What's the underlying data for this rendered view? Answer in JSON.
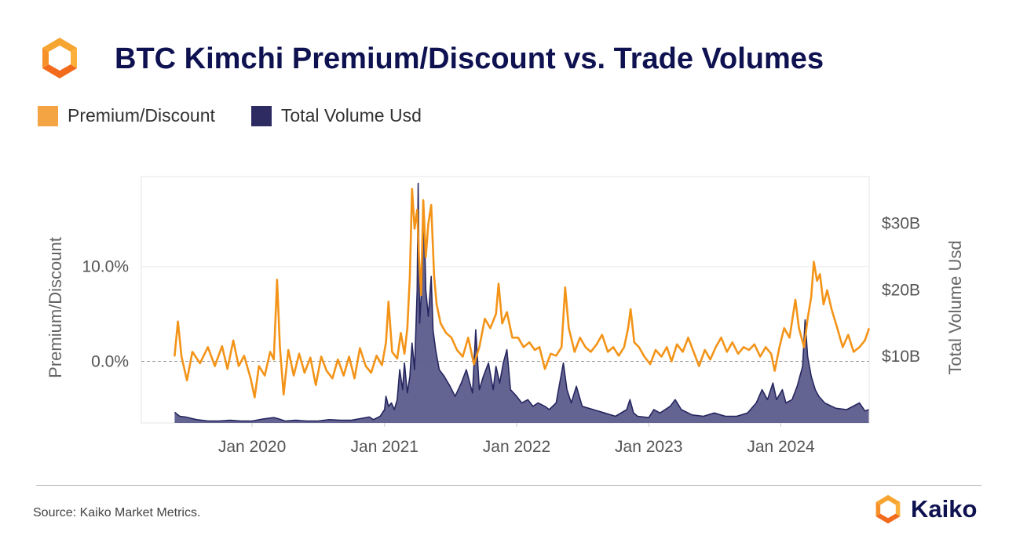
{
  "header": {
    "title": "BTC Kimchi Premium/Discount vs. Trade Volumes"
  },
  "legend": {
    "items": [
      {
        "label": "Premium/Discount",
        "color": "#f5a443"
      },
      {
        "label": "Total Volume Usd",
        "color": "#2e2b63"
      }
    ]
  },
  "footer": {
    "source": "Source: Kaiko Market Metrics.",
    "brand": "Kaiko"
  },
  "icons": {
    "logo": "kaiko-logo-icon",
    "brand_mark": "kaiko-brand-icon"
  },
  "chart_data": {
    "type": "line",
    "xlabel": "",
    "x_ticks": [
      {
        "date": "2020-01-01",
        "label": "Jan 2020"
      },
      {
        "date": "2021-01-01",
        "label": "Jan 2021"
      },
      {
        "date": "2022-01-01",
        "label": "Jan 2022"
      },
      {
        "date": "2023-01-01",
        "label": "Jan 2023"
      },
      {
        "date": "2024-01-01",
        "label": "Jan 2024"
      }
    ],
    "x_range": [
      "2019-03-01",
      "2024-09-01"
    ],
    "y_left": {
      "label": "Premium/Discount",
      "unit": "percent",
      "range": [
        -6.5,
        19.5
      ],
      "ticks": [
        {
          "value": 0,
          "label": "0.0%"
        },
        {
          "value": 10,
          "label": "10.0%"
        }
      ],
      "zero_line": true
    },
    "y_right": {
      "label": "Total Volume Usd",
      "unit": "USD billions",
      "range": [
        0,
        37
      ],
      "ticks": [
        {
          "value": 10,
          "label": "$10B"
        },
        {
          "value": 20,
          "label": "$20B"
        },
        {
          "value": 30,
          "label": "$30B"
        }
      ]
    },
    "series": [
      {
        "name": "Premium/Discount",
        "axis": "left",
        "style": "line",
        "color": "#f39419",
        "points": [
          [
            "2019-06-01",
            0.6
          ],
          [
            "2019-06-10",
            4.2
          ],
          [
            "2019-06-20",
            0.5
          ],
          [
            "2019-07-05",
            -2.0
          ],
          [
            "2019-07-20",
            1.0
          ],
          [
            "2019-08-10",
            -0.2
          ],
          [
            "2019-09-01",
            1.5
          ],
          [
            "2019-09-20",
            -0.5
          ],
          [
            "2019-10-10",
            1.6
          ],
          [
            "2019-10-25",
            -0.8
          ],
          [
            "2019-11-10",
            2.2
          ],
          [
            "2019-11-25",
            -0.5
          ],
          [
            "2019-12-10",
            0.6
          ],
          [
            "2019-12-28",
            -1.8
          ],
          [
            "2020-01-08",
            -3.8
          ],
          [
            "2020-01-20",
            -0.5
          ],
          [
            "2020-02-05",
            -1.5
          ],
          [
            "2020-02-20",
            1.0
          ],
          [
            "2020-03-01",
            0.2
          ],
          [
            "2020-03-10",
            8.6
          ],
          [
            "2020-03-18",
            1.5
          ],
          [
            "2020-03-28",
            -3.5
          ],
          [
            "2020-04-10",
            1.2
          ],
          [
            "2020-04-25",
            -1.5
          ],
          [
            "2020-05-10",
            0.8
          ],
          [
            "2020-05-25",
            -1.2
          ],
          [
            "2020-06-10",
            0.4
          ],
          [
            "2020-06-25",
            -2.5
          ],
          [
            "2020-07-10",
            0.5
          ],
          [
            "2020-07-25",
            -1.0
          ],
          [
            "2020-08-10",
            -1.8
          ],
          [
            "2020-08-25",
            0.2
          ],
          [
            "2020-09-10",
            -1.5
          ],
          [
            "2020-09-25",
            0.5
          ],
          [
            "2020-10-10",
            -1.8
          ],
          [
            "2020-10-25",
            1.4
          ],
          [
            "2020-11-10",
            -0.5
          ],
          [
            "2020-11-25",
            -1.2
          ],
          [
            "2020-12-10",
            0.6
          ],
          [
            "2020-12-25",
            -0.4
          ],
          [
            "2021-01-05",
            2.0
          ],
          [
            "2021-01-12",
            6.3
          ],
          [
            "2021-01-22",
            1.0
          ],
          [
            "2021-02-05",
            0.3
          ],
          [
            "2021-02-15",
            3.0
          ],
          [
            "2021-02-25",
            0.8
          ],
          [
            "2021-03-05",
            3.5
          ],
          [
            "2021-03-12",
            9.0
          ],
          [
            "2021-03-18",
            18.2
          ],
          [
            "2021-03-25",
            14.0
          ],
          [
            "2021-04-01",
            16.0
          ],
          [
            "2021-04-06",
            11.0
          ],
          [
            "2021-04-12",
            7.0
          ],
          [
            "2021-04-18",
            17.0
          ],
          [
            "2021-04-25",
            11.0
          ],
          [
            "2021-05-02",
            14.5
          ],
          [
            "2021-05-10",
            16.5
          ],
          [
            "2021-05-18",
            9.0
          ],
          [
            "2021-05-25",
            6.0
          ],
          [
            "2021-06-05",
            4.0
          ],
          [
            "2021-06-20",
            3.0
          ],
          [
            "2021-07-05",
            2.5
          ],
          [
            "2021-07-20",
            1.2
          ],
          [
            "2021-08-05",
            0.5
          ],
          [
            "2021-08-20",
            2.5
          ],
          [
            "2021-09-05",
            -0.3
          ],
          [
            "2021-09-20",
            1.5
          ],
          [
            "2021-10-05",
            4.5
          ],
          [
            "2021-10-20",
            3.5
          ],
          [
            "2021-11-05",
            5.0
          ],
          [
            "2021-11-12",
            8.2
          ],
          [
            "2021-11-22",
            4.0
          ],
          [
            "2021-12-05",
            5.2
          ],
          [
            "2021-12-20",
            2.5
          ],
          [
            "2022-01-05",
            2.5
          ],
          [
            "2022-01-20",
            1.5
          ],
          [
            "2022-02-05",
            2.0
          ],
          [
            "2022-02-20",
            1.2
          ],
          [
            "2022-03-05",
            1.5
          ],
          [
            "2022-03-20",
            -0.8
          ],
          [
            "2022-04-05",
            0.8
          ],
          [
            "2022-04-20",
            0.6
          ],
          [
            "2022-05-05",
            1.5
          ],
          [
            "2022-05-15",
            7.8
          ],
          [
            "2022-05-25",
            3.5
          ],
          [
            "2022-06-10",
            1.0
          ],
          [
            "2022-06-25",
            2.5
          ],
          [
            "2022-07-10",
            1.5
          ],
          [
            "2022-07-25",
            1.0
          ],
          [
            "2022-08-10",
            1.8
          ],
          [
            "2022-08-25",
            2.8
          ],
          [
            "2022-09-10",
            1.0
          ],
          [
            "2022-09-25",
            1.5
          ],
          [
            "2022-10-10",
            0.6
          ],
          [
            "2022-10-25",
            1.5
          ],
          [
            "2022-11-05",
            3.5
          ],
          [
            "2022-11-12",
            5.5
          ],
          [
            "2022-11-22",
            2.0
          ],
          [
            "2022-12-05",
            1.5
          ],
          [
            "2022-12-20",
            0.5
          ],
          [
            "2023-01-05",
            -0.3
          ],
          [
            "2023-01-20",
            1.2
          ],
          [
            "2023-02-05",
            0.5
          ],
          [
            "2023-02-20",
            1.5
          ],
          [
            "2023-03-05",
            0.0
          ],
          [
            "2023-03-20",
            1.8
          ],
          [
            "2023-04-05",
            1.0
          ],
          [
            "2023-04-20",
            2.5
          ],
          [
            "2023-05-05",
            1.0
          ],
          [
            "2023-05-20",
            -0.5
          ],
          [
            "2023-06-05",
            1.2
          ],
          [
            "2023-06-20",
            0.2
          ],
          [
            "2023-07-05",
            1.5
          ],
          [
            "2023-07-20",
            2.5
          ],
          [
            "2023-08-05",
            1.0
          ],
          [
            "2023-08-20",
            2.0
          ],
          [
            "2023-09-05",
            0.8
          ],
          [
            "2023-09-20",
            1.5
          ],
          [
            "2023-10-05",
            1.2
          ],
          [
            "2023-10-20",
            1.8
          ],
          [
            "2023-11-05",
            0.5
          ],
          [
            "2023-11-20",
            1.5
          ],
          [
            "2023-12-05",
            0.8
          ],
          [
            "2023-12-15",
            -1.0
          ],
          [
            "2023-12-28",
            1.5
          ],
          [
            "2024-01-10",
            3.5
          ],
          [
            "2024-01-25",
            2.5
          ],
          [
            "2024-02-10",
            6.5
          ],
          [
            "2024-02-20",
            3.5
          ],
          [
            "2024-03-05",
            1.5
          ],
          [
            "2024-03-15",
            4.5
          ],
          [
            "2024-03-25",
            6.8
          ],
          [
            "2024-04-01",
            10.5
          ],
          [
            "2024-04-10",
            8.5
          ],
          [
            "2024-04-18",
            9.2
          ],
          [
            "2024-04-28",
            6.0
          ],
          [
            "2024-05-08",
            7.5
          ],
          [
            "2024-05-20",
            5.5
          ],
          [
            "2024-06-05",
            3.5
          ],
          [
            "2024-06-20",
            1.5
          ],
          [
            "2024-07-05",
            2.8
          ],
          [
            "2024-07-20",
            1.0
          ],
          [
            "2024-08-05",
            1.5
          ],
          [
            "2024-08-20",
            2.2
          ],
          [
            "2024-08-31",
            3.4
          ]
        ]
      },
      {
        "name": "Total Volume Usd",
        "axis": "right",
        "style": "area",
        "color": "#262660",
        "fill": "#5c5c8c",
        "points": [
          [
            "2019-06-01",
            1.6
          ],
          [
            "2019-06-15",
            1.0
          ],
          [
            "2019-07-01",
            0.9
          ],
          [
            "2019-08-01",
            0.5
          ],
          [
            "2019-09-01",
            0.3
          ],
          [
            "2019-10-01",
            0.3
          ],
          [
            "2019-11-01",
            0.4
          ],
          [
            "2019-12-01",
            0.3
          ],
          [
            "2020-01-01",
            0.3
          ],
          [
            "2020-02-01",
            0.6
          ],
          [
            "2020-03-01",
            0.8
          ],
          [
            "2020-03-15",
            0.6
          ],
          [
            "2020-04-01",
            0.3
          ],
          [
            "2020-05-01",
            0.4
          ],
          [
            "2020-06-01",
            0.3
          ],
          [
            "2020-07-01",
            0.3
          ],
          [
            "2020-08-01",
            0.5
          ],
          [
            "2020-09-01",
            0.4
          ],
          [
            "2020-10-01",
            0.4
          ],
          [
            "2020-11-01",
            0.7
          ],
          [
            "2020-11-20",
            0.9
          ],
          [
            "2020-12-01",
            0.5
          ],
          [
            "2020-12-20",
            1.0
          ],
          [
            "2021-01-01",
            2.0
          ],
          [
            "2021-01-05",
            4.0
          ],
          [
            "2021-01-12",
            2.5
          ],
          [
            "2021-01-20",
            3.0
          ],
          [
            "2021-01-28",
            2.0
          ],
          [
            "2021-02-05",
            3.5
          ],
          [
            "2021-02-12",
            8.0
          ],
          [
            "2021-02-20",
            5.0
          ],
          [
            "2021-02-25",
            9.0
          ],
          [
            "2021-03-05",
            4.5
          ],
          [
            "2021-03-12",
            7.0
          ],
          [
            "2021-03-18",
            12.0
          ],
          [
            "2021-03-25",
            8.0
          ],
          [
            "2021-04-01",
            20.0
          ],
          [
            "2021-04-04",
            36.0
          ],
          [
            "2021-04-08",
            15.0
          ],
          [
            "2021-04-15",
            22.0
          ],
          [
            "2021-04-20",
            32.0
          ],
          [
            "2021-04-25",
            20.0
          ],
          [
            "2021-05-02",
            16.0
          ],
          [
            "2021-05-10",
            22.0
          ],
          [
            "2021-05-15",
            14.0
          ],
          [
            "2021-05-22",
            11.0
          ],
          [
            "2021-06-01",
            8.0
          ],
          [
            "2021-06-15",
            7.0
          ],
          [
            "2021-07-01",
            5.5
          ],
          [
            "2021-07-15",
            4.0
          ],
          [
            "2021-08-01",
            6.0
          ],
          [
            "2021-08-15",
            8.0
          ],
          [
            "2021-09-01",
            4.5
          ],
          [
            "2021-09-10",
            14.0
          ],
          [
            "2021-09-20",
            5.0
          ],
          [
            "2021-10-01",
            7.0
          ],
          [
            "2021-10-15",
            9.0
          ],
          [
            "2021-10-28",
            5.0
          ],
          [
            "2021-11-05",
            8.5
          ],
          [
            "2021-11-15",
            6.0
          ],
          [
            "2021-11-25",
            9.0
          ],
          [
            "2021-12-05",
            11.0
          ],
          [
            "2021-12-15",
            5.0
          ],
          [
            "2022-01-01",
            4.0
          ],
          [
            "2022-01-15",
            3.0
          ],
          [
            "2022-02-01",
            3.5
          ],
          [
            "2022-02-15",
            2.5
          ],
          [
            "2022-03-01",
            3.0
          ],
          [
            "2022-03-20",
            2.5
          ],
          [
            "2022-04-01",
            2.0
          ],
          [
            "2022-04-20",
            3.0
          ],
          [
            "2022-05-10",
            9.0
          ],
          [
            "2022-05-20",
            5.0
          ],
          [
            "2022-06-01",
            3.0
          ],
          [
            "2022-06-15",
            5.5
          ],
          [
            "2022-07-01",
            2.5
          ],
          [
            "2022-08-01",
            2.0
          ],
          [
            "2022-09-01",
            1.5
          ],
          [
            "2022-10-01",
            1.0
          ],
          [
            "2022-11-01",
            2.0
          ],
          [
            "2022-11-10",
            3.5
          ],
          [
            "2022-11-20",
            1.5
          ],
          [
            "2022-12-01",
            1.0
          ],
          [
            "2023-01-01",
            0.8
          ],
          [
            "2023-01-15",
            2.0
          ],
          [
            "2023-02-01",
            1.5
          ],
          [
            "2023-03-01",
            2.5
          ],
          [
            "2023-03-15",
            3.5
          ],
          [
            "2023-04-01",
            2.0
          ],
          [
            "2023-05-01",
            1.2
          ],
          [
            "2023-06-01",
            1.0
          ],
          [
            "2023-07-01",
            1.5
          ],
          [
            "2023-08-01",
            1.0
          ],
          [
            "2023-09-01",
            1.0
          ],
          [
            "2023-10-01",
            1.5
          ],
          [
            "2023-10-25",
            3.0
          ],
          [
            "2023-11-10",
            5.0
          ],
          [
            "2023-11-25",
            3.5
          ],
          [
            "2023-12-10",
            6.0
          ],
          [
            "2023-12-20",
            3.5
          ],
          [
            "2024-01-05",
            5.0
          ],
          [
            "2024-01-15",
            3.0
          ],
          [
            "2024-02-01",
            3.5
          ],
          [
            "2024-02-15",
            5.5
          ],
          [
            "2024-03-01",
            8.5
          ],
          [
            "2024-03-08",
            15.5
          ],
          [
            "2024-03-15",
            10.0
          ],
          [
            "2024-03-25",
            7.0
          ],
          [
            "2024-04-05",
            5.0
          ],
          [
            "2024-04-15",
            4.0
          ],
          [
            "2024-05-01",
            3.0
          ],
          [
            "2024-06-01",
            2.2
          ],
          [
            "2024-07-01",
            2.0
          ],
          [
            "2024-08-05",
            3.0
          ],
          [
            "2024-08-20",
            1.8
          ],
          [
            "2024-08-31",
            2.0
          ]
        ]
      }
    ]
  }
}
